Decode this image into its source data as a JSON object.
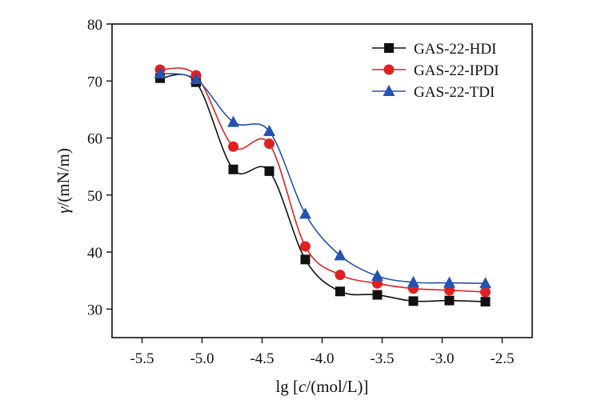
{
  "chart_data": {
    "type": "scatter",
    "xlabel_parts": [
      "lg [",
      "c",
      "/(mol/L)]"
    ],
    "ylabel_parts": [
      "γ",
      "/(mN/m)"
    ],
    "xlim": [
      -5.75,
      -2.25
    ],
    "ylim": [
      25,
      80
    ],
    "x_ticks": [
      -5.5,
      -5.0,
      -4.5,
      -4.0,
      -3.5,
      -3.0,
      -2.5
    ],
    "x_tick_labels": [
      "-5.5",
      "-5.0",
      "-4.5",
      "-4.0",
      "-3.5",
      "-3.0",
      "-2.5"
    ],
    "y_ticks": [
      30,
      40,
      50,
      60,
      70,
      80
    ],
    "y_tick_labels": [
      "30",
      "40",
      "50",
      "60",
      "70",
      "80"
    ],
    "legend_position": "top-right",
    "x": [
      -5.35,
      -5.05,
      -4.74,
      -4.44,
      -4.14,
      -3.85,
      -3.54,
      -3.24,
      -2.94,
      -2.64
    ],
    "series": [
      {
        "name": "GAS-22-HDI",
        "marker": "square",
        "color": "#111111",
        "values": [
          70.5,
          69.8,
          54.5,
          54.2,
          38.7,
          33.1,
          32.5,
          31.4,
          31.5,
          31.3
        ]
      },
      {
        "name": "GAS-22-IPDI",
        "marker": "circle",
        "color": "#e02020",
        "values": [
          72.0,
          71.0,
          58.5,
          59.0,
          41.0,
          36.0,
          34.5,
          33.6,
          33.3,
          33.0
        ]
      },
      {
        "name": "GAS-22-TDI",
        "marker": "triangle",
        "color": "#2452b0",
        "values": [
          71.3,
          70.3,
          62.8,
          61.2,
          46.7,
          39.4,
          35.8,
          34.7,
          34.6,
          34.5
        ]
      }
    ]
  }
}
